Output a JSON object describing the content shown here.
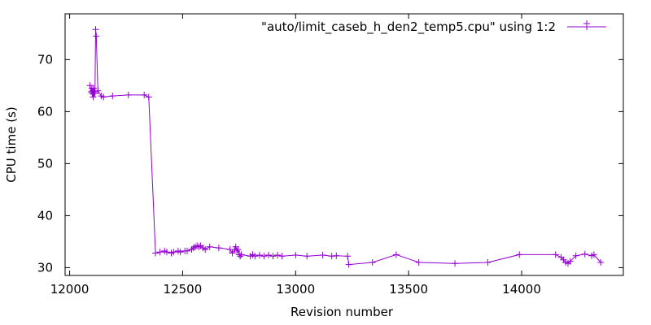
{
  "chart_data": {
    "type": "line",
    "xlabel": "Revision number",
    "ylabel": "CPU time (s)",
    "xlim": [
      11980,
      14450
    ],
    "ylim": [
      28.5,
      78.8
    ],
    "xticks": [
      12000,
      12500,
      13000,
      13500,
      14000
    ],
    "yticks": [
      30,
      40,
      50,
      60,
      70
    ],
    "grid": false,
    "legend_position": "top-right",
    "line_color": "#9400d3",
    "series": [
      {
        "name": "\"auto/limit_caseb_h_den2_temp5.cpu\" using 1:2",
        "x": [
          12090,
          12095,
          12098,
          12100,
          12102,
          12104,
          12106,
          12108,
          12110,
          12112,
          12115,
          12118,
          12125,
          12140,
          12150,
          12190,
          12260,
          12330,
          12350,
          12380,
          12400,
          12420,
          12430,
          12450,
          12460,
          12480,
          12490,
          12510,
          12520,
          12540,
          12548,
          12556,
          12564,
          12572,
          12580,
          12590,
          12600,
          12620,
          12660,
          12710,
          12720,
          12730,
          12735,
          12740,
          12745,
          12750,
          12755,
          12760,
          12800,
          12810,
          12820,
          12840,
          12860,
          12880,
          12900,
          12920,
          12940,
          13000,
          13050,
          13120,
          13160,
          13180,
          13230,
          13235,
          13340,
          13445,
          13545,
          13705,
          13850,
          13990,
          14150,
          14175,
          14185,
          14195,
          14205,
          14215,
          14240,
          14280,
          14310,
          14320,
          14350
        ],
        "y": [
          65.0,
          63.8,
          64.5,
          63.5,
          64.0,
          62.8,
          64.5,
          63.5,
          63.8,
          63.5,
          75.8,
          74.5,
          64.0,
          63.0,
          62.8,
          63.0,
          63.2,
          63.2,
          62.8,
          32.8,
          33.0,
          33.2,
          33.0,
          32.8,
          33.0,
          33.2,
          33.0,
          33.2,
          33.2,
          33.5,
          33.8,
          34.0,
          34.2,
          34.0,
          34.2,
          33.8,
          33.5,
          34.0,
          33.8,
          33.5,
          32.8,
          33.5,
          34.0,
          33.2,
          33.5,
          32.5,
          32.2,
          32.5,
          32.2,
          32.5,
          32.2,
          32.4,
          32.2,
          32.4,
          32.2,
          32.4,
          32.2,
          32.4,
          32.2,
          32.4,
          32.2,
          32.3,
          32.2,
          30.6,
          31.0,
          32.5,
          31.0,
          30.8,
          31.0,
          32.5,
          32.5,
          32.0,
          31.5,
          31.0,
          30.8,
          31.2,
          32.3,
          32.6,
          32.3,
          32.5,
          31.0
        ]
      }
    ]
  }
}
